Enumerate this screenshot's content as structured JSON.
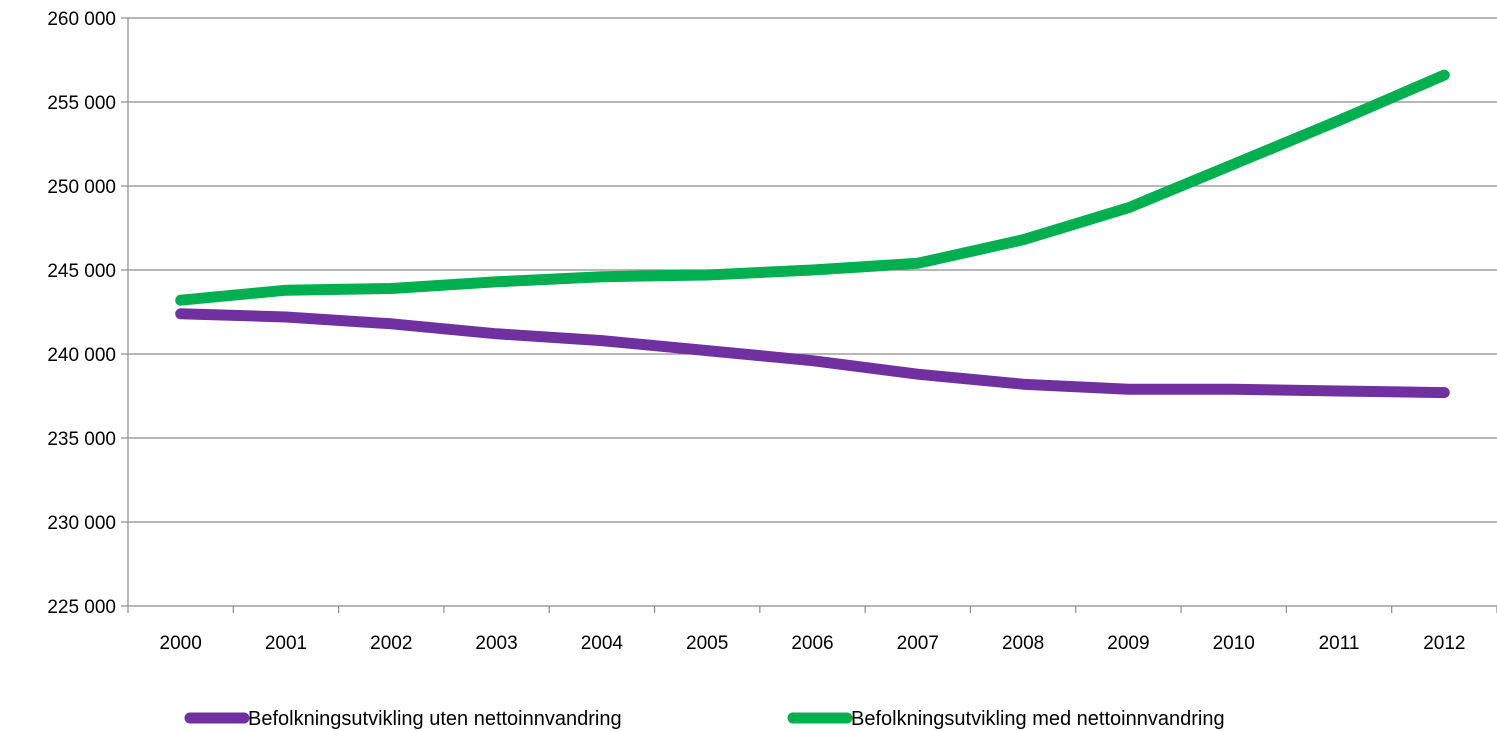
{
  "chart_data": {
    "type": "line",
    "title": "",
    "xlabel": "",
    "ylabel": "",
    "categories": [
      "2000",
      "2001",
      "2002",
      "2003",
      "2004",
      "2005",
      "2006",
      "2007",
      "2008",
      "2009",
      "2010",
      "2011",
      "2012"
    ],
    "y_ticks": [
      "225 000",
      "230 000",
      "235 000",
      "240 000",
      "245 000",
      "250 000",
      "255 000",
      "260 000"
    ],
    "ylim": [
      225000,
      260000
    ],
    "grid": true,
    "legend_position": "bottom",
    "series": [
      {
        "name": "Befolkningsutvikling uten nettoinnvandring",
        "color": "#7030a0",
        "values": [
          242400,
          242200,
          241800,
          241200,
          240800,
          240200,
          239600,
          238800,
          238200,
          237900,
          237900,
          237800,
          237700
        ]
      },
      {
        "name": "Befolkningsutvikling med nettoinnvandring",
        "color": "#00b050",
        "values": [
          243200,
          243800,
          243900,
          244300,
          244600,
          244700,
          245000,
          245400,
          246800,
          248700,
          251300,
          253900,
          256600
        ]
      }
    ]
  }
}
